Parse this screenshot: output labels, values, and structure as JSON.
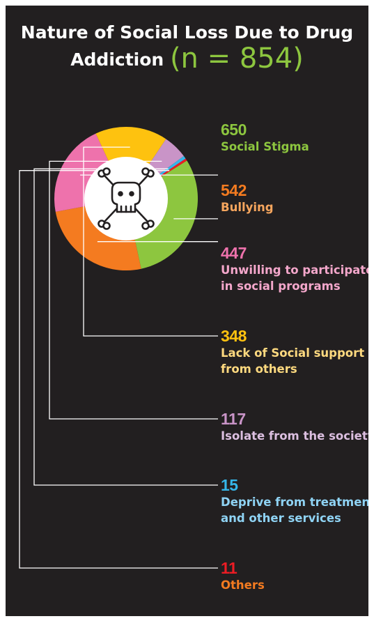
{
  "title": {
    "line1": "Nature of Social Loss Due to Drug",
    "line2": "Addiction",
    "n_label": "(n = 854)",
    "n_color": "#8dc63f"
  },
  "center_icon": "skull-and-crossbones-icon",
  "chart_data": {
    "type": "pie",
    "variant": "donut",
    "categories": [
      "Social Stigma",
      "Bullying",
      "Unwilling to participate in social programs",
      "Lack of Social support from others",
      "Isolate from the society",
      "Deprive from treatment and other services",
      "Others"
    ],
    "values": [
      650,
      542,
      447,
      348,
      117,
      15,
      11
    ],
    "colors": [
      "#8dc63f",
      "#f47b20",
      "#ee72ac",
      "#fec20f",
      "#c994c7",
      "#35b6e9",
      "#ec1c24"
    ]
  },
  "labels": [
    {
      "value": "650",
      "lines": [
        "Social Stigma"
      ],
      "value_color": "#8dc63f",
      "text_color": "#8dc63f"
    },
    {
      "value": "542",
      "lines": [
        "Bullying"
      ],
      "value_color": "#f47b20",
      "text_color": "#f7a65e"
    },
    {
      "value": "447",
      "lines": [
        "Unwilling to participate",
        "in social programs"
      ],
      "value_color": "#ee72ac",
      "text_color": "#f4a7cb"
    },
    {
      "value": "348",
      "lines": [
        "Lack of Social support",
        "from others"
      ],
      "value_color": "#fec20f",
      "text_color": "#fed97f"
    },
    {
      "value": "117",
      "lines": [
        "Isolate from the society"
      ],
      "value_color": "#c994c7",
      "text_color": "#dcbfe0"
    },
    {
      "value": "15",
      "lines": [
        "Deprive from treatment",
        "and other services"
      ],
      "value_color": "#35b6e9",
      "text_color": "#8fd3f4"
    },
    {
      "value": "11",
      "lines": [
        "Others"
      ],
      "value_color": "#ec1c24",
      "text_color": "#f47b20"
    }
  ]
}
